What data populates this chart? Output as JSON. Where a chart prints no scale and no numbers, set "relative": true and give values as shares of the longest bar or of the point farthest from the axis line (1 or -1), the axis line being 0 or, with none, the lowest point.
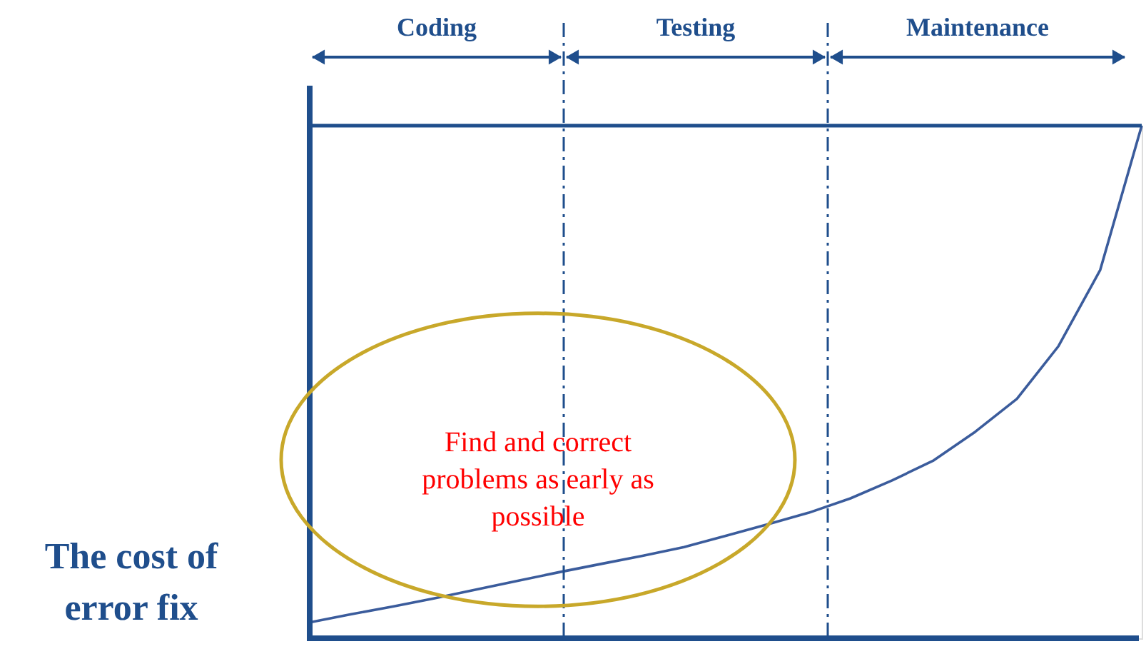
{
  "chart_data": {
    "type": "line",
    "relative": true,
    "ylabel": "The cost of error fix",
    "categories": [
      null,
      null,
      null,
      null,
      null,
      null,
      null,
      null,
      null,
      null,
      null,
      null,
      null,
      null,
      null,
      null,
      null,
      null,
      null,
      null,
      null
    ],
    "grid": false,
    "marker": "none",
    "line_style": "solid",
    "series": [
      {
        "color": "#3b5c9c",
        "values": [
          0.031,
          0.047,
          0.062,
          0.078,
          0.095,
          0.112,
          0.129,
          0.145,
          0.161,
          0.178,
          0.2,
          0.222,
          0.245,
          0.273,
          0.308,
          0.347,
          0.403,
          0.467,
          0.57,
          0.718,
          1.0
        ]
      }
    ],
    "annotations": [
      "Coding",
      "Testing",
      "Maintenance",
      "Find and correct problems as early as possible"
    ]
  }
}
